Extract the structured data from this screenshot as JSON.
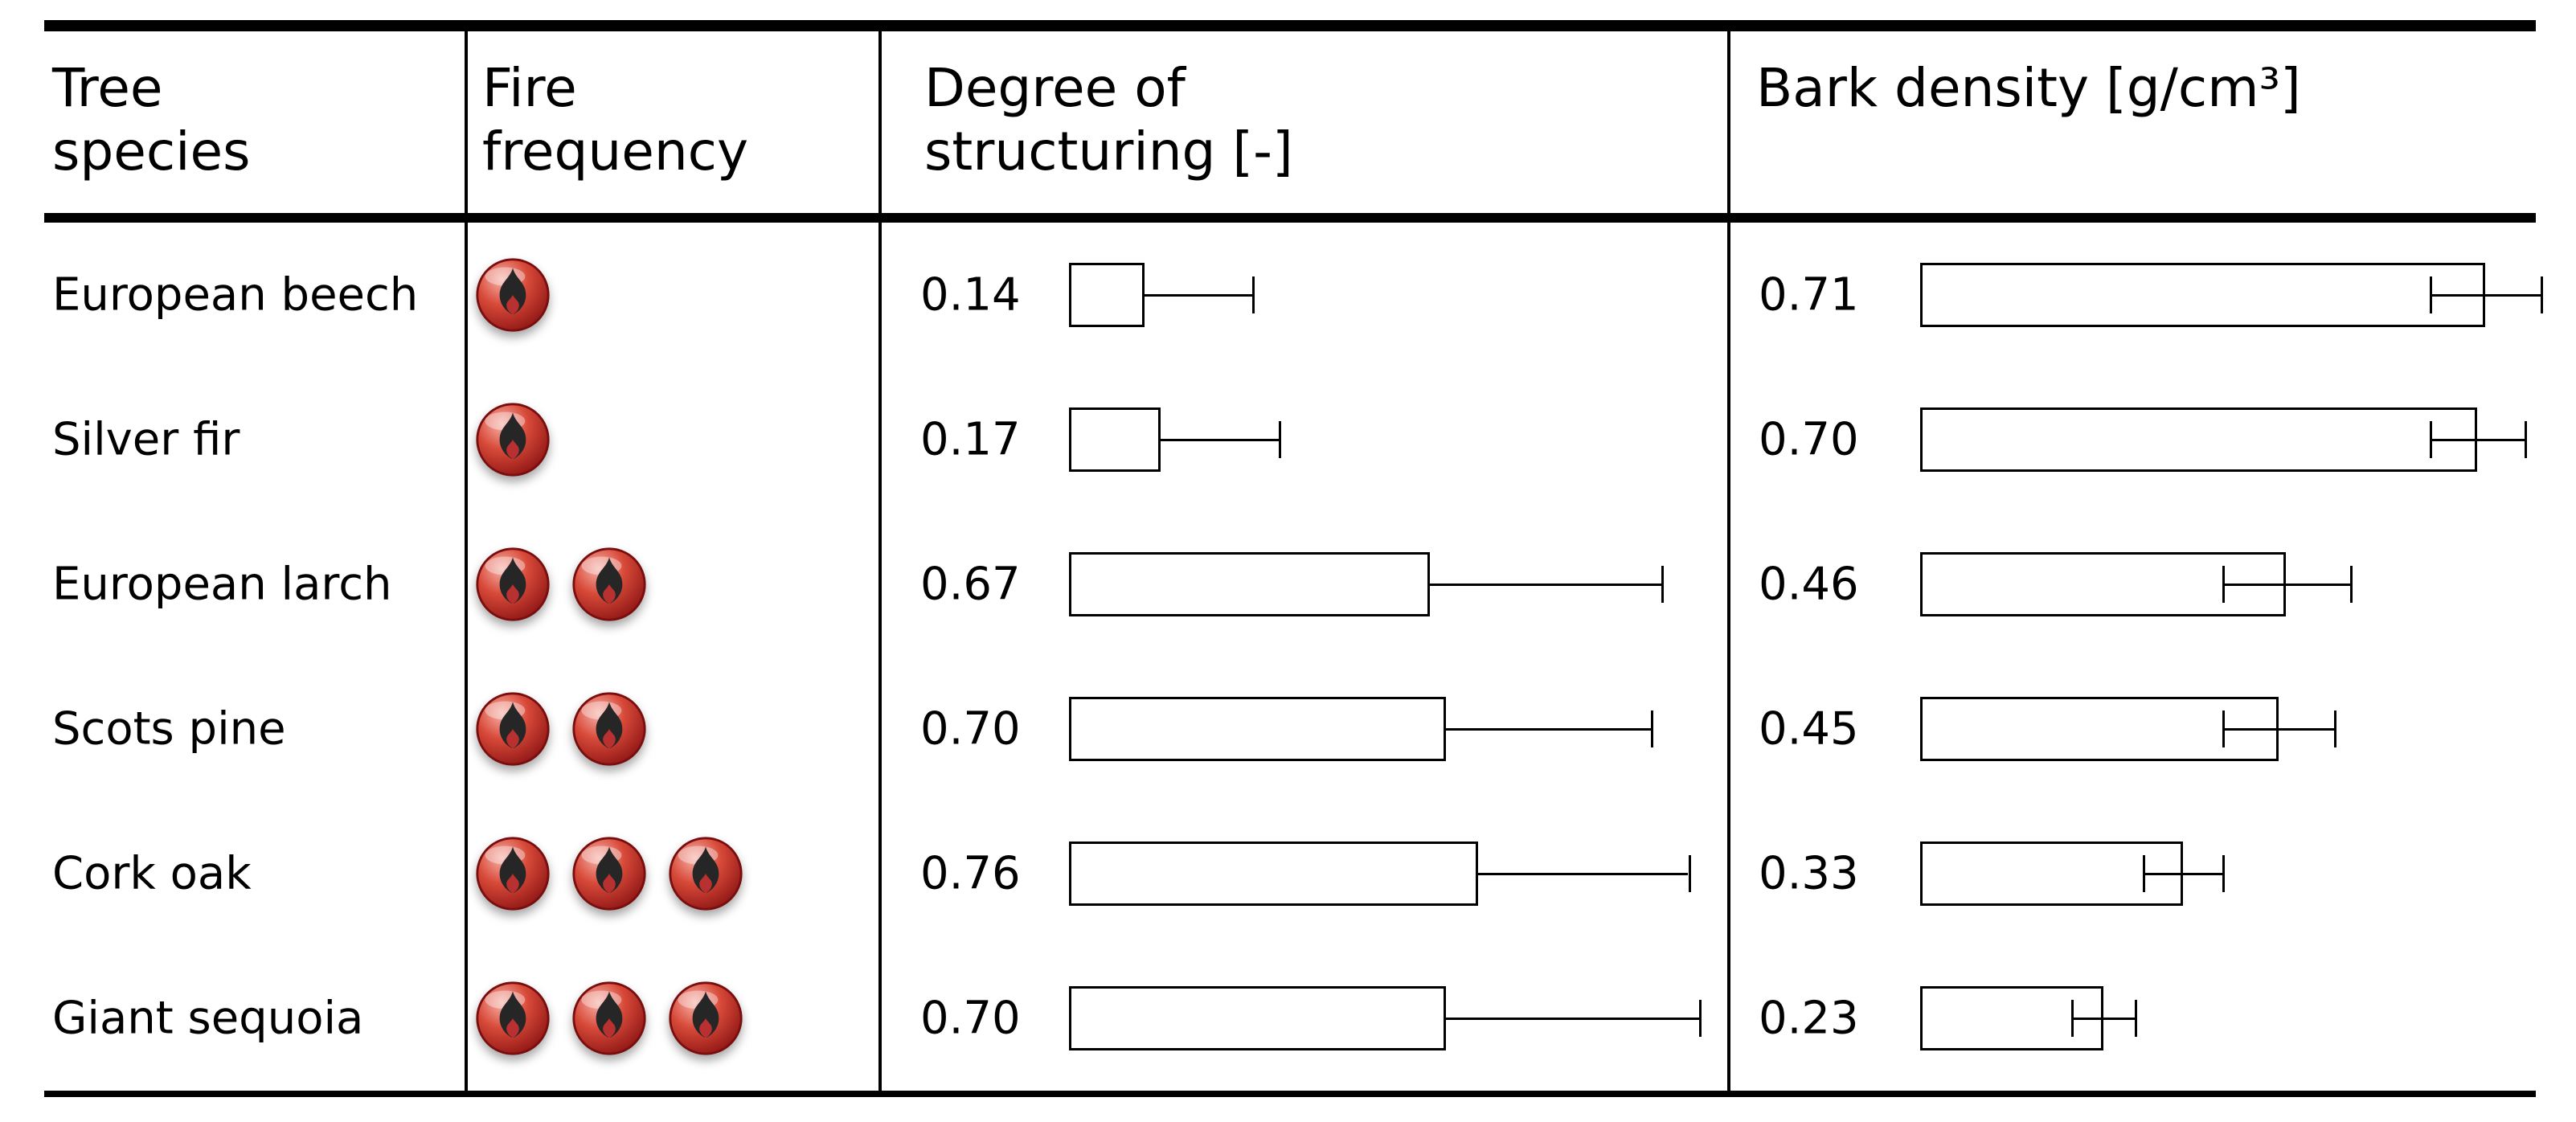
{
  "header": {
    "col1": "Tree species",
    "col2": "Fire frequency",
    "col3": "Degree of structuring [-]",
    "col4": "Bark density [g/cm³]"
  },
  "chart_data": {
    "type": "table",
    "columns": [
      "Tree species",
      "Fire frequency",
      "Degree of structuring [-]",
      "Bark density [g/cm³]"
    ],
    "description": "Table of tree species with fire frequency rating (flame icons), horizontal bar chart of degree of structuring with one-sided error whiskers, and horizontal bar chart of bark density with two-sided error bars",
    "fire_icon": "flame-icon",
    "structuring_axis_range": [
      0,
      1.3
    ],
    "bark_density_axis_range": [
      0,
      0.8
    ],
    "rows": [
      {
        "species": "European beech",
        "fire_frequency": 1,
        "structuring": 0.14,
        "structuring_err_plus": 0.2,
        "bark_density": 0.71,
        "bark_density_err": 0.07
      },
      {
        "species": "Silver fir",
        "fire_frequency": 1,
        "structuring": 0.17,
        "structuring_err_plus": 0.22,
        "bark_density": 0.7,
        "bark_density_err": 0.06
      },
      {
        "species": "European larch",
        "fire_frequency": 2,
        "structuring": 0.67,
        "structuring_err_plus": 0.43,
        "bark_density": 0.46,
        "bark_density_err": 0.08
      },
      {
        "species": "Scots pine",
        "fire_frequency": 2,
        "structuring": 0.7,
        "structuring_err_plus": 0.38,
        "bark_density": 0.45,
        "bark_density_err": 0.07
      },
      {
        "species": "Cork oak",
        "fire_frequency": 3,
        "structuring": 0.76,
        "structuring_err_plus": 0.39,
        "bark_density": 0.33,
        "bark_density_err": 0.05
      },
      {
        "species": "Giant sequoia",
        "fire_frequency": 3,
        "structuring": 0.7,
        "structuring_err_plus": 0.47,
        "bark_density": 0.23,
        "bark_density_err": 0.04
      }
    ]
  }
}
